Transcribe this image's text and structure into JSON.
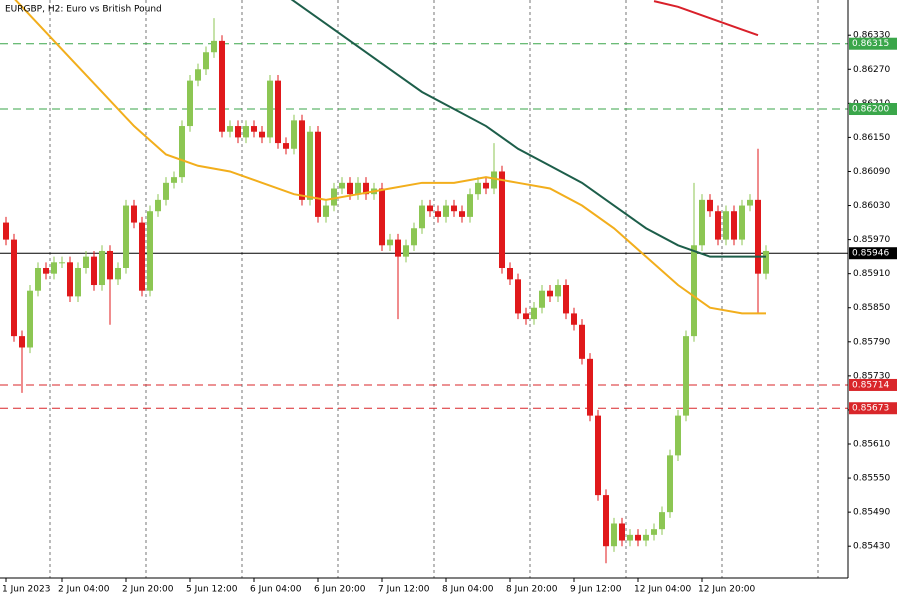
{
  "chart_data": {
    "type": "candlestick",
    "title": "EURGBP, H2:  Euro vs British Pound",
    "categories": [
      "1 Jun 2023",
      null,
      null,
      null,
      null,
      null,
      null,
      "2 Jun 04:00",
      null,
      null,
      null,
      null,
      null,
      null,
      null,
      "2 Jun 20:00",
      null,
      null,
      null,
      null,
      null,
      null,
      null,
      "5 Jun 12:00",
      null,
      null,
      null,
      null,
      null,
      null,
      null,
      "6 Jun 04:00",
      null,
      null,
      null,
      null,
      null,
      null,
      null,
      "6 Jun 20:00",
      null,
      null,
      null,
      null,
      null,
      null,
      null,
      "7 Jun 12:00",
      null,
      null,
      null,
      null,
      null,
      null,
      null,
      "8 Jun 04:00",
      null,
      null,
      null,
      null,
      null,
      null,
      null,
      "8 Jun 20:00",
      null,
      null,
      null,
      null,
      null,
      null,
      null,
      "9 Jun 12:00",
      null,
      null,
      null,
      null,
      null,
      null,
      null,
      "12 Jun 04:00",
      null,
      null,
      null,
      null,
      null,
      null,
      null,
      "12 Jun 20:00",
      null,
      null,
      null,
      null,
      null,
      null,
      null,
      null
    ],
    "open": [
      0.86,
      0.8597,
      0.858,
      0.8578,
      0.8588,
      0.8592,
      0.8591,
      0.8593,
      0.8593,
      0.8587,
      0.8592,
      0.8594,
      0.8589,
      0.8595,
      0.859,
      0.8592,
      0.8603,
      0.86,
      0.8588,
      0.8602,
      0.8604,
      0.8607,
      0.8608,
      0.8617,
      0.8625,
      0.8627,
      0.863,
      0.8632,
      0.8616,
      0.8617,
      0.8615,
      0.8617,
      0.8616,
      0.8615,
      0.8625,
      0.8614,
      0.8613,
      0.8618,
      0.8604,
      0.8616,
      0.8601,
      0.8603,
      0.8606,
      0.8607,
      0.8605,
      0.8607,
      0.8605,
      0.8606,
      0.8596,
      0.8597,
      0.8594,
      0.8596,
      0.8599,
      0.8603,
      0.8602,
      0.8601,
      0.8603,
      0.8602,
      0.8601,
      0.8605,
      0.8607,
      0.8606,
      0.8609,
      0.8592,
      0.859,
      0.8584,
      0.8583,
      0.8585,
      0.8588,
      0.8587,
      0.8589,
      0.8584,
      0.8582,
      0.8576,
      0.8566,
      0.8552,
      0.8543,
      0.8547,
      0.8544,
      0.8545,
      0.8544,
      0.8545,
      0.8546,
      0.8549,
      0.8559,
      0.8566,
      0.858,
      0.8596,
      0.8604,
      0.8602,
      0.8597,
      0.8602,
      0.8597,
      0.8603,
      0.8604,
      0.8591
    ],
    "high": [
      0.8601,
      0.8598,
      0.8581,
      0.8589,
      0.8593,
      0.8593,
      0.8594,
      0.8594,
      0.8594,
      0.8593,
      0.8595,
      0.8595,
      0.8596,
      0.8596,
      0.8593,
      0.8604,
      0.8604,
      0.8601,
      0.8603,
      0.8605,
      0.8608,
      0.8609,
      0.8618,
      0.8626,
      0.8628,
      0.8631,
      0.8636,
      0.8633,
      0.8618,
      0.8618,
      0.8618,
      0.8618,
      0.8617,
      0.8626,
      0.8626,
      0.8615,
      0.8619,
      0.8619,
      0.8617,
      0.8617,
      0.8604,
      0.8607,
      0.8608,
      0.8608,
      0.8608,
      0.8608,
      0.8607,
      0.8607,
      0.8598,
      0.8598,
      0.8597,
      0.86,
      0.8604,
      0.8604,
      0.8603,
      0.8604,
      0.8604,
      0.8603,
      0.8606,
      0.8608,
      0.8608,
      0.8614,
      0.861,
      0.8593,
      0.8591,
      0.8585,
      0.8586,
      0.8589,
      0.8589,
      0.859,
      0.859,
      0.8585,
      0.8583,
      0.8577,
      0.8567,
      0.8553,
      0.8548,
      0.8548,
      0.8546,
      0.8546,
      0.8546,
      0.8547,
      0.855,
      0.856,
      0.8567,
      0.8581,
      0.8607,
      0.8605,
      0.8605,
      0.8603,
      0.8603,
      0.8603,
      0.8604,
      0.8605,
      0.8613,
      0.8596
    ],
    "low": [
      0.8596,
      0.8579,
      0.857,
      0.8577,
      0.8587,
      0.859,
      0.859,
      0.8592,
      0.8586,
      0.8586,
      0.8591,
      0.8588,
      0.8588,
      0.8582,
      0.8589,
      0.8591,
      0.8599,
      0.8587,
      0.8587,
      0.8601,
      0.8603,
      0.8606,
      0.8607,
      0.8616,
      0.8624,
      0.8626,
      0.8629,
      0.8615,
      0.8615,
      0.8614,
      0.8614,
      0.8615,
      0.8614,
      0.8614,
      0.8613,
      0.8612,
      0.8612,
      0.8603,
      0.8603,
      0.86,
      0.86,
      0.8602,
      0.8605,
      0.8604,
      0.8604,
      0.8604,
      0.8604,
      0.8595,
      0.8595,
      0.8583,
      0.8593,
      0.8595,
      0.8598,
      0.8601,
      0.86,
      0.86,
      0.8601,
      0.86,
      0.86,
      0.8604,
      0.8605,
      0.8605,
      0.8591,
      0.8589,
      0.8583,
      0.8582,
      0.8582,
      0.8584,
      0.8586,
      0.8586,
      0.8583,
      0.8581,
      0.8575,
      0.8565,
      0.8551,
      0.854,
      0.8542,
      0.8543,
      0.8543,
      0.8543,
      0.8543,
      0.8544,
      0.8545,
      0.8548,
      0.8558,
      0.8565,
      0.8579,
      0.8595,
      0.8601,
      0.8596,
      0.8596,
      0.8596,
      0.8596,
      0.8602,
      0.8584,
      0.859
    ],
    "close": [
      0.8597,
      0.858,
      0.8578,
      0.8588,
      0.8592,
      0.8591,
      0.8593,
      0.8593,
      0.8587,
      0.8592,
      0.8594,
      0.8589,
      0.8595,
      0.859,
      0.8592,
      0.8603,
      0.86,
      0.8588,
      0.8602,
      0.8604,
      0.8607,
      0.8608,
      0.8617,
      0.8625,
      0.8627,
      0.863,
      0.8632,
      0.8616,
      0.8617,
      0.8615,
      0.8617,
      0.8616,
      0.8615,
      0.8625,
      0.8614,
      0.8613,
      0.8618,
      0.8604,
      0.8616,
      0.8601,
      0.8603,
      0.8606,
      0.8607,
      0.8605,
      0.8607,
      0.8605,
      0.8606,
      0.8596,
      0.8597,
      0.8594,
      0.8596,
      0.8599,
      0.8603,
      0.8602,
      0.8601,
      0.8603,
      0.8602,
      0.8601,
      0.8605,
      0.8607,
      0.8606,
      0.8609,
      0.8592,
      0.859,
      0.8584,
      0.8583,
      0.8585,
      0.8588,
      0.8587,
      0.8589,
      0.8584,
      0.8582,
      0.8576,
      0.8566,
      0.8552,
      0.8543,
      0.8547,
      0.8544,
      0.8545,
      0.8544,
      0.8545,
      0.8546,
      0.8549,
      0.8559,
      0.8566,
      0.858,
      0.8596,
      0.8604,
      0.8602,
      0.8597,
      0.8602,
      0.8597,
      0.8603,
      0.8604,
      0.8591,
      0.8595
    ],
    "up_color": "#8cc653",
    "down_color": "#e0191b",
    "ylim": [
      0.85374,
      0.86392
    ],
    "yticks": [
      {
        "value": 0.8633,
        "label": "0.86330"
      },
      {
        "value": 0.8627,
        "label": "0.86270"
      },
      {
        "value": 0.8621,
        "label": "0.86210"
      },
      {
        "value": 0.8615,
        "label": "0.86150"
      },
      {
        "value": 0.8609,
        "label": "0.86090"
      },
      {
        "value": 0.8603,
        "label": "0.86030"
      },
      {
        "value": 0.8597,
        "label": "0.85970"
      },
      {
        "value": 0.8591,
        "label": "0.85910"
      },
      {
        "value": 0.8585,
        "label": "0.85850"
      },
      {
        "value": 0.8579,
        "label": "0.85790"
      },
      {
        "value": 0.8573,
        "label": "0.85730"
      },
      {
        "value": 0.8567,
        "label": "0.85670"
      },
      {
        "value": 0.8561,
        "label": "0.85610"
      },
      {
        "value": 0.8555,
        "label": "0.85550"
      },
      {
        "value": 0.8549,
        "label": "0.85490"
      },
      {
        "value": 0.8543,
        "label": "0.85430"
      }
    ],
    "levels": [
      {
        "value": 0.86315,
        "color": "#3aa64a",
        "dashed": true
      },
      {
        "value": 0.862,
        "label": "0.86200",
        "color": "#3aa64a",
        "dashed": true
      },
      {
        "value": 0.85714,
        "color": "#d9262a",
        "dashed": true
      },
      {
        "value": 0.85673,
        "color": "#d9262a",
        "dashed": true
      },
      {
        "value": 0.85946,
        "color": "#000000",
        "dashed": false
      }
    ],
    "indicators": [
      {
        "color": "#f2ae1c",
        "x": [
          0,
          4,
          8,
          12,
          16,
          20,
          24,
          28,
          32,
          36,
          40,
          44,
          48,
          52,
          56,
          60,
          64,
          68,
          72,
          76,
          80,
          84,
          88,
          92,
          95
        ],
        "values": [
          0.8641,
          0.8635,
          0.8629,
          0.8623,
          0.8617,
          0.8612,
          0.861,
          0.8609,
          0.8607,
          0.8605,
          0.8604,
          0.8605,
          0.8606,
          0.8607,
          0.8607,
          0.8608,
          0.8607,
          0.8606,
          0.8603,
          0.8599,
          0.8594,
          0.8589,
          0.8585,
          0.8584,
          0.8584
        ]
      },
      {
        "color": "#1d5e4a",
        "x": [
          35,
          40,
          44,
          48,
          52,
          56,
          60,
          64,
          68,
          72,
          76,
          80,
          84,
          88,
          92,
          95
        ],
        "values": [
          0.864,
          0.8635,
          0.8631,
          0.8627,
          0.8623,
          0.862,
          0.8617,
          0.8613,
          0.861,
          0.8607,
          0.8603,
          0.8599,
          0.8596,
          0.8594,
          0.8594,
          0.8594
        ]
      },
      {
        "color": "#d9202a",
        "x": [
          81,
          84,
          88,
          92,
          94
        ],
        "values": [
          0.8639,
          0.8638,
          0.8636,
          0.8634,
          0.8633
        ]
      }
    ]
  }
}
